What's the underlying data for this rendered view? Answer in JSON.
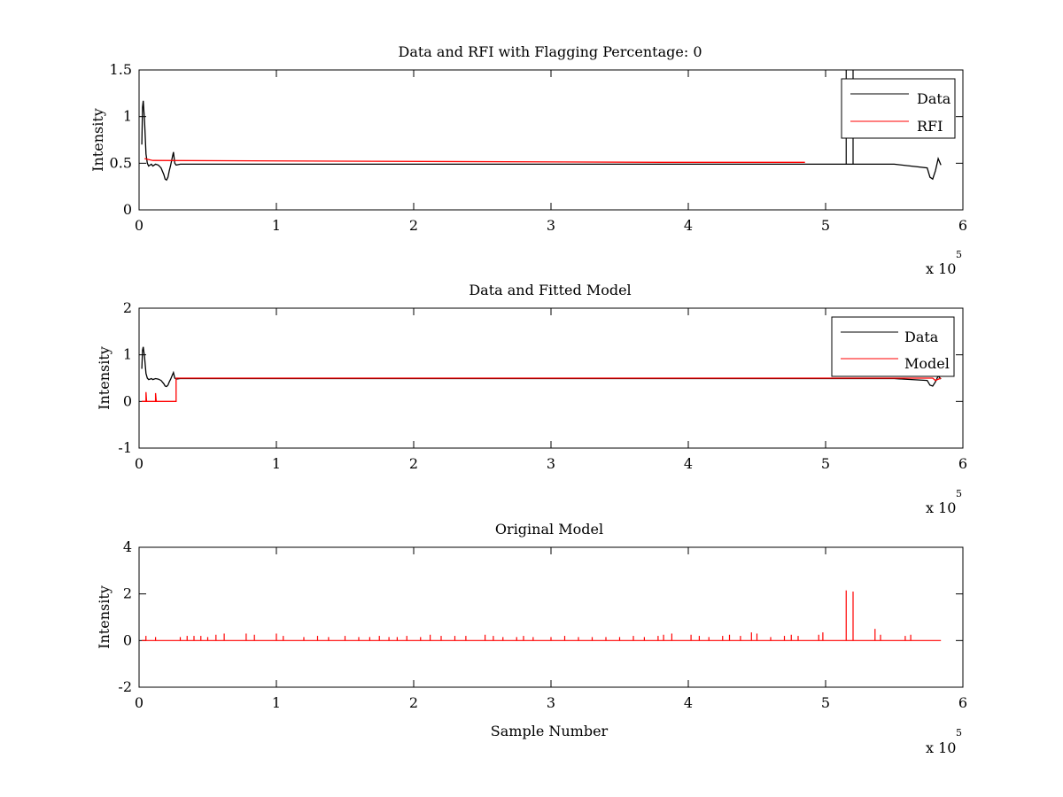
{
  "figure": {
    "background": "#ffffff",
    "axis_color": "#000000",
    "series_colors": {
      "data": "#000000",
      "red": "#ff0000"
    }
  },
  "chart_data": [
    {
      "type": "line",
      "title": "Data and RFI with Flagging Percentage: 0",
      "xlabel": "",
      "ylabel": "Intensity",
      "xlim": [
        0,
        6
      ],
      "ylim": [
        0,
        1.5
      ],
      "x_multiplier": "x 10",
      "x_exponent": "5",
      "xticks": [
        "0",
        "1",
        "2",
        "3",
        "4",
        "5",
        "6"
      ],
      "yticks": [
        "0",
        "0.5",
        "1",
        "1.5"
      ],
      "grid": false,
      "legend": {
        "placement": "top-right",
        "entries": [
          "Data",
          "RFI"
        ]
      },
      "series": [
        {
          "name": "Data",
          "color": "#000000",
          "x": [
            0.02,
            0.025,
            0.03,
            0.04,
            0.05,
            0.06,
            0.07,
            0.08,
            0.09,
            0.1,
            0.12,
            0.14,
            0.16,
            0.18,
            0.19,
            0.2,
            0.21,
            0.22,
            0.23,
            0.24,
            0.25,
            0.26,
            0.27,
            0.3,
            0.5,
            1.0,
            1.5,
            2.0,
            2.5,
            3.0,
            3.5,
            4.0,
            4.5,
            5.0,
            5.2,
            5.5,
            5.74,
            5.76,
            5.78,
            5.8,
            5.82,
            5.84
          ],
          "y": [
            0.7,
            1.1,
            1.17,
            0.95,
            0.6,
            0.5,
            0.47,
            0.48,
            0.49,
            0.47,
            0.49,
            0.48,
            0.45,
            0.38,
            0.33,
            0.32,
            0.35,
            0.42,
            0.48,
            0.55,
            0.62,
            0.5,
            0.48,
            0.49,
            0.49,
            0.49,
            0.49,
            0.49,
            0.49,
            0.49,
            0.49,
            0.49,
            0.49,
            0.49,
            0.49,
            0.49,
            0.45,
            0.35,
            0.33,
            0.42,
            0.55,
            0.48
          ]
        },
        {
          "name": "RFI",
          "color": "#ff0000",
          "x": [
            0.04,
            0.1,
            3.8,
            4.85
          ],
          "y": [
            0.55,
            0.53,
            0.51,
            0.51
          ]
        }
      ],
      "overflow_spikes": {
        "color": "#000000",
        "x": [
          5.15,
          5.2
        ]
      }
    },
    {
      "type": "line",
      "title": "Data and Fitted Model",
      "xlabel": "",
      "ylabel": "Intensity",
      "xlim": [
        0,
        6
      ],
      "ylim": [
        -1,
        2
      ],
      "x_multiplier": "x 10",
      "x_exponent": "5",
      "xticks": [
        "0",
        "1",
        "2",
        "3",
        "4",
        "5",
        "6"
      ],
      "yticks": [
        "-1",
        "0",
        "1",
        "2"
      ],
      "grid": false,
      "legend": {
        "placement": "top-right",
        "entries": [
          "Data",
          "Model"
        ]
      },
      "series": [
        {
          "name": "Data",
          "color": "#000000",
          "x": [
            0.02,
            0.025,
            0.03,
            0.04,
            0.05,
            0.06,
            0.07,
            0.08,
            0.09,
            0.1,
            0.12,
            0.14,
            0.16,
            0.18,
            0.19,
            0.2,
            0.21,
            0.22,
            0.23,
            0.24,
            0.25,
            0.26,
            0.27,
            0.3,
            0.5,
            1.0,
            1.5,
            2.0,
            2.5,
            3.0,
            3.5,
            4.0,
            4.5,
            5.0,
            5.2,
            5.5,
            5.74,
            5.76,
            5.78,
            5.8,
            5.82,
            5.84
          ],
          "y": [
            0.7,
            1.1,
            1.17,
            0.95,
            0.6,
            0.5,
            0.47,
            0.48,
            0.49,
            0.47,
            0.49,
            0.48,
            0.45,
            0.38,
            0.33,
            0.32,
            0.35,
            0.42,
            0.48,
            0.55,
            0.62,
            0.5,
            0.48,
            0.49,
            0.49,
            0.49,
            0.49,
            0.49,
            0.49,
            0.49,
            0.49,
            0.49,
            0.49,
            0.49,
            0.49,
            0.49,
            0.45,
            0.35,
            0.33,
            0.42,
            0.55,
            0.48
          ]
        },
        {
          "name": "Model",
          "color": "#ff0000",
          "x": [
            0.02,
            0.05,
            0.05,
            0.055,
            0.06,
            0.12,
            0.12,
            0.125,
            0.13,
            0.27,
            0.27,
            0.5,
            1.0,
            2.0,
            3.0,
            4.0,
            5.0,
            5.78,
            5.8,
            5.84
          ],
          "y": [
            0.0,
            0.0,
            0.2,
            0.0,
            0.0,
            0.0,
            0.18,
            0.0,
            0.0,
            0.0,
            0.5,
            0.5,
            0.5,
            0.5,
            0.5,
            0.5,
            0.5,
            0.5,
            0.45,
            0.5
          ]
        }
      ]
    },
    {
      "type": "line",
      "title": "Original Model",
      "xlabel": "Sample Number",
      "ylabel": "Intensity",
      "xlim": [
        0,
        6
      ],
      "ylim": [
        -2,
        4
      ],
      "x_multiplier": "x 10",
      "x_exponent": "5",
      "xticks": [
        "0",
        "1",
        "2",
        "3",
        "4",
        "5",
        "6"
      ],
      "yticks": [
        "-2",
        "0",
        "2",
        "4"
      ],
      "grid": false,
      "legend": null,
      "series": [
        {
          "color": "#ff0000",
          "baseline": {
            "x": [
              0.02,
              5.84
            ],
            "y": 0
          },
          "spikes_x": [
            0.05,
            0.12,
            0.3,
            0.35,
            0.4,
            0.45,
            0.5,
            0.56,
            0.62,
            0.78,
            0.84,
            1.0,
            1.05,
            1.2,
            1.3,
            1.38,
            1.5,
            1.6,
            1.68,
            1.75,
            1.82,
            1.88,
            1.95,
            2.05,
            2.12,
            2.2,
            2.3,
            2.38,
            2.52,
            2.58,
            2.65,
            2.75,
            2.8,
            2.87,
            3.0,
            3.1,
            3.2,
            3.3,
            3.4,
            3.5,
            3.6,
            3.68,
            3.78,
            3.82,
            3.88,
            4.02,
            4.08,
            4.15,
            4.25,
            4.3,
            4.38,
            4.46,
            4.5,
            4.6,
            4.7,
            4.75,
            4.8,
            4.95,
            4.98,
            5.15,
            5.2,
            5.36,
            5.4,
            5.58,
            5.62
          ],
          "spikes_y": [
            0.2,
            0.15,
            0.15,
            0.2,
            0.2,
            0.2,
            0.15,
            0.25,
            0.3,
            0.3,
            0.25,
            0.3,
            0.2,
            0.15,
            0.2,
            0.15,
            0.2,
            0.15,
            0.15,
            0.2,
            0.15,
            0.15,
            0.2,
            0.15,
            0.25,
            0.2,
            0.2,
            0.2,
            0.25,
            0.2,
            0.15,
            0.15,
            0.2,
            0.15,
            0.15,
            0.2,
            0.15,
            0.15,
            0.15,
            0.15,
            0.2,
            0.15,
            0.2,
            0.25,
            0.3,
            0.25,
            0.2,
            0.15,
            0.2,
            0.25,
            0.2,
            0.35,
            0.3,
            0.15,
            0.2,
            0.25,
            0.2,
            0.25,
            0.35,
            2.15,
            2.1,
            0.5,
            0.25,
            0.2,
            0.25
          ]
        }
      ]
    }
  ]
}
